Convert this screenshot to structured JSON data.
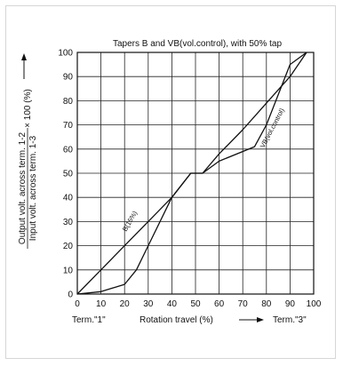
{
  "chart_data": {
    "type": "line",
    "title": "Tapers B and VB(vol.control), with 50% tap",
    "ylabel_numerator": "Output volt. across term. 1-2",
    "ylabel_denominator": "Input volt. across term. 1-3",
    "ylabel_multiplier": "× 100 (%)",
    "xlabel": "Rotation travel (%)",
    "x_start_label": "Term.\"1\"",
    "x_end_label": "Term.\"3\"",
    "xlim": [
      0,
      100
    ],
    "ylim": [
      0,
      100
    ],
    "grid": true,
    "x_ticks": [
      "0",
      "10",
      "20",
      "30",
      "40",
      "50",
      "60",
      "70",
      "80",
      "90",
      "100"
    ],
    "y_ticks": [
      "0",
      "10",
      "20",
      "30",
      "40",
      "50",
      "60",
      "70",
      "80",
      "90",
      "100"
    ],
    "series": [
      {
        "name": "B(15%)",
        "color": "#111111",
        "points": [
          [
            0,
            0
          ],
          [
            10,
            10
          ],
          [
            20,
            20
          ],
          [
            30,
            30
          ],
          [
            40,
            40
          ],
          [
            48,
            50
          ],
          [
            53,
            50
          ],
          [
            60,
            58
          ],
          [
            70,
            68
          ],
          [
            80,
            79
          ],
          [
            90,
            90
          ],
          [
            97,
            100
          ]
        ]
      },
      {
        "name": "VB(vol.control)",
        "color": "#111111",
        "points": [
          [
            0,
            0
          ],
          [
            10,
            1
          ],
          [
            20,
            4
          ],
          [
            25,
            10
          ],
          [
            30,
            20
          ],
          [
            40,
            40
          ],
          [
            48,
            50
          ],
          [
            53,
            50
          ],
          [
            60,
            55
          ],
          [
            75,
            61
          ],
          [
            80,
            70
          ],
          [
            90,
            95
          ],
          [
            97,
            100
          ]
        ]
      }
    ]
  }
}
